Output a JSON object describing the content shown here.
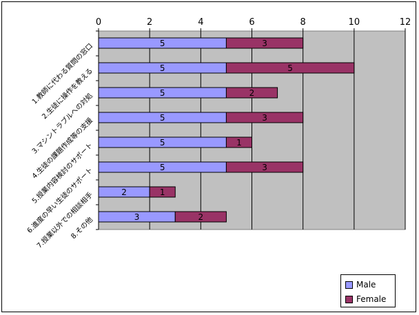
{
  "chart_data": {
    "type": "bar",
    "orientation": "horizontal",
    "stacked": true,
    "categories": [
      "1.教師に代わる質問の窓口",
      "2.生徒に操作を教える",
      "3.マシントラブルへの対処",
      "4.生徒の課題作成等の支援",
      "5.授業内容検討のサポート",
      "6.進度の早い生徒のサポート",
      "7.授業以外での相談相手",
      "8.その他"
    ],
    "series": [
      {
        "name": "Male",
        "values": [
          5,
          5,
          5,
          5,
          5,
          5,
          2,
          3
        ],
        "color": "#9999ff"
      },
      {
        "name": "Female",
        "values": [
          3,
          5,
          2,
          3,
          1,
          3,
          1,
          2
        ],
        "color": "#993366"
      }
    ],
    "xlim": [
      0,
      12
    ],
    "xticks": [
      "0",
      "2",
      "4",
      "6",
      "8",
      "10",
      "12"
    ],
    "grid": true,
    "plot_background": "#c0c0c0",
    "legend_position": "bottom-right"
  }
}
